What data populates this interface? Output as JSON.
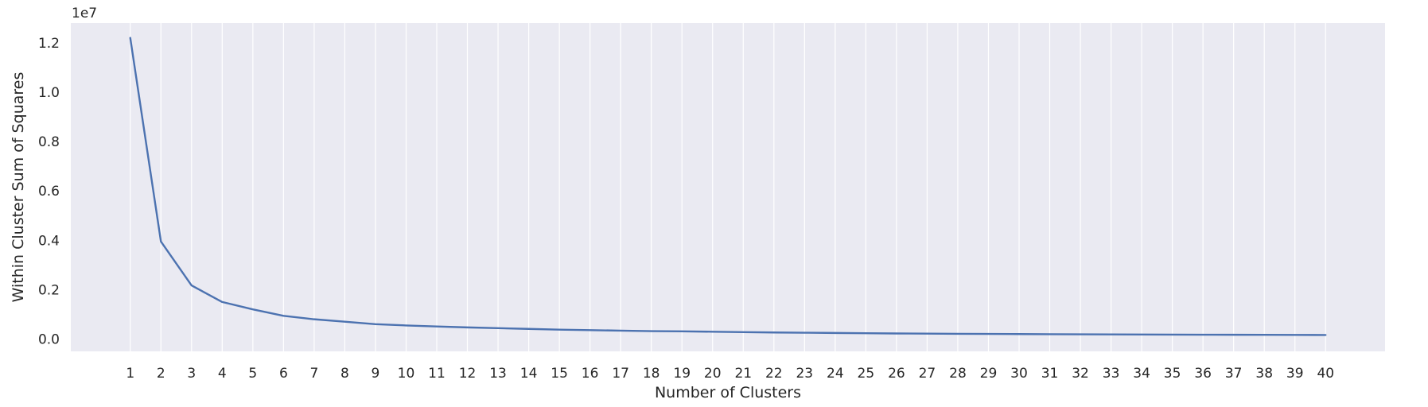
{
  "chart_data": {
    "type": "line",
    "title": "",
    "xlabel": "Number of Clusters",
    "ylabel": "Within Cluster Sum of Squares",
    "y_offset_label": "1e7",
    "x": [
      1,
      2,
      3,
      4,
      5,
      6,
      7,
      8,
      9,
      10,
      11,
      12,
      13,
      14,
      15,
      16,
      17,
      18,
      19,
      20,
      21,
      22,
      23,
      24,
      25,
      26,
      27,
      28,
      29,
      30,
      31,
      32,
      33,
      34,
      35,
      36,
      37,
      38,
      39,
      40
    ],
    "x_tick_labels": [
      "1",
      "2",
      "3",
      "4",
      "5",
      "6",
      "7",
      "8",
      "9",
      "10",
      "11",
      "12",
      "13",
      "14",
      "15",
      "16",
      "17",
      "18",
      "19",
      "20",
      "21",
      "22",
      "23",
      "24",
      "25",
      "26",
      "27",
      "28",
      "29",
      "30",
      "31",
      "32",
      "33",
      "34",
      "35",
      "36",
      "37",
      "38",
      "39",
      "40"
    ],
    "series": [
      {
        "values": [
          12200000,
          3950000,
          2170000,
          1500000,
          1200000,
          940000,
          800000,
          700000,
          600000,
          550000,
          510000,
          470000,
          440000,
          410000,
          380000,
          360000,
          340000,
          320000,
          310000,
          295000,
          280000,
          265000,
          255000,
          245000,
          235000,
          225000,
          218000,
          212000,
          206000,
          200000,
          195000,
          190000,
          186000,
          182000,
          178000,
          175000,
          172000,
          169000,
          166000,
          163000
        ],
        "color": "#4c72b0"
      }
    ],
    "y_ticks": [
      0,
      2000000,
      4000000,
      6000000,
      8000000,
      10000000,
      12000000
    ],
    "y_tick_labels": [
      "0.0",
      "0.2",
      "0.4",
      "0.6",
      "0.8",
      "1.0",
      "1.2"
    ],
    "xlim": [
      -0.94,
      41.94
    ],
    "ylim": [
      -500000,
      12800000
    ],
    "grid": "vertical",
    "colors": {
      "background": "#eaeaf2",
      "grid": "#ffffff",
      "line": "#4c72b0",
      "text": "#262626"
    }
  }
}
